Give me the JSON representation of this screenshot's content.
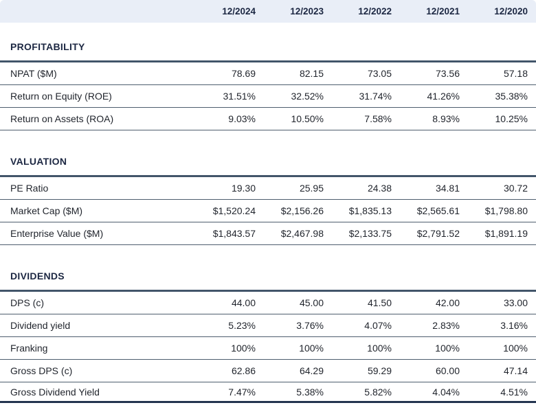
{
  "table": {
    "columns": [
      "12/2024",
      "12/2023",
      "12/2022",
      "12/2021",
      "12/2020"
    ],
    "sections": [
      {
        "title": "PROFITABILITY",
        "rows": [
          {
            "label": "NPAT ($M)",
            "values": [
              "78.69",
              "82.15",
              "73.05",
              "73.56",
              "57.18"
            ]
          },
          {
            "label": "Return on Equity (ROE)",
            "values": [
              "31.51%",
              "32.52%",
              "31.74%",
              "41.26%",
              "35.38%"
            ]
          },
          {
            "label": "Return on Assets (ROA)",
            "values": [
              "9.03%",
              "10.50%",
              "7.58%",
              "8.93%",
              "10.25%"
            ]
          }
        ]
      },
      {
        "title": "VALUATION",
        "rows": [
          {
            "label": "PE Ratio",
            "values": [
              "19.30",
              "25.95",
              "24.38",
              "34.81",
              "30.72"
            ]
          },
          {
            "label": "Market Cap ($M)",
            "values": [
              "$1,520.24",
              "$2,156.26",
              "$1,835.13",
              "$2,565.61",
              "$1,798.80"
            ]
          },
          {
            "label": "Enterprise Value ($M)",
            "values": [
              "$1,843.57",
              "$2,467.98",
              "$2,133.75",
              "$2,791.52",
              "$1,891.19"
            ]
          }
        ]
      },
      {
        "title": "DIVIDENDS",
        "rows": [
          {
            "label": "DPS (c)",
            "values": [
              "44.00",
              "45.00",
              "41.50",
              "42.00",
              "33.00"
            ]
          },
          {
            "label": "Dividend yield",
            "values": [
              "5.23%",
              "3.76%",
              "4.07%",
              "2.83%",
              "3.16%"
            ]
          },
          {
            "label": "Franking",
            "values": [
              "100%",
              "100%",
              "100%",
              "100%",
              "100%"
            ]
          },
          {
            "label": "Gross DPS (c)",
            "values": [
              "62.86",
              "64.29",
              "59.29",
              "60.00",
              "47.14"
            ]
          },
          {
            "label": "Gross Dividend Yield",
            "values": [
              "7.47%",
              "5.38%",
              "5.82%",
              "4.04%",
              "4.51%"
            ]
          }
        ]
      }
    ],
    "colors": {
      "header_bg": "#e9eef7",
      "heading_text": "#1c2742",
      "body_text": "#1f232b",
      "section_border": "#42556a",
      "row_border": "#4d5d6d",
      "bottom_bar": "#233450"
    }
  }
}
